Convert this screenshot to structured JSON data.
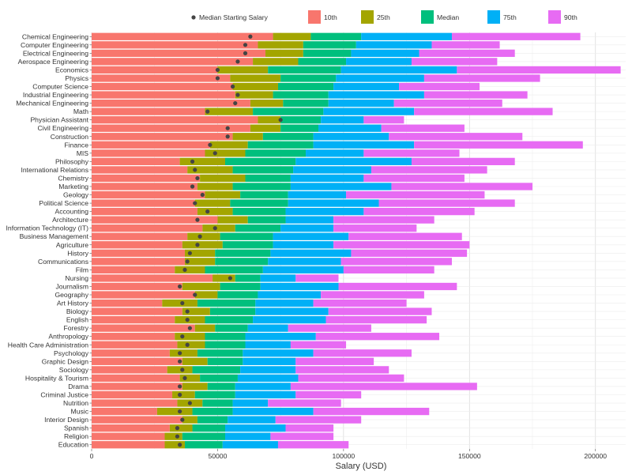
{
  "chart_data": {
    "type": "bar",
    "orientation": "horizontal",
    "stacked": true,
    "xlabel": "Salary (USD)",
    "ylabel": "",
    "xlim": [
      0,
      212000
    ],
    "xticks": [
      0,
      50000,
      100000,
      150000,
      200000
    ],
    "grid": true,
    "legend_position": "top",
    "colors": {
      "10th": "#F8766D",
      "25th": "#A3A500",
      "Median": "#00BF7D",
      "75th": "#00B0F6",
      "90th": "#E76BF3",
      "median_starting": "#444444"
    },
    "legend": {
      "marker_label": "Median Starting Salary",
      "series_labels": [
        "10th",
        "25th",
        "Median",
        "75th",
        "90th"
      ]
    },
    "series_keys": [
      "p10",
      "p25",
      "median",
      "p75",
      "p90"
    ],
    "majors": [
      {
        "name": "Chemical Engineering",
        "p10": 72000,
        "p25": 87000,
        "median": 107000,
        "p75": 143000,
        "p90": 194000,
        "start": 63000
      },
      {
        "name": "Computer Engineering",
        "p10": 66000,
        "p25": 84000,
        "median": 105000,
        "p75": 135000,
        "p90": 162000,
        "start": 61000
      },
      {
        "name": "Electrical Engineering",
        "p10": 69000,
        "p25": 84000,
        "median": 103000,
        "p75": 130000,
        "p90": 168000,
        "start": 61000
      },
      {
        "name": "Aerospace Engineering",
        "p10": 64000,
        "p25": 82000,
        "median": 101000,
        "p75": 127000,
        "p90": 161000,
        "start": 58000
      },
      {
        "name": "Economics",
        "p10": 50000,
        "p25": 70000,
        "median": 99000,
        "p75": 145000,
        "p90": 210000,
        "start": 50000
      },
      {
        "name": "Physics",
        "p10": 55000,
        "p25": 75000,
        "median": 97000,
        "p75": 132000,
        "p90": 178000,
        "start": 50000
      },
      {
        "name": "Computer Science",
        "p10": 56000,
        "p25": 74000,
        "median": 96000,
        "p75": 122000,
        "p90": 154000,
        "start": 56000
      },
      {
        "name": "Industrial Engineering",
        "p10": 57000,
        "p25": 72000,
        "median": 94000,
        "p75": 132000,
        "p90": 173000,
        "start": 58000
      },
      {
        "name": "Mechanical Engineering",
        "p10": 63000,
        "p25": 76000,
        "median": 94000,
        "p75": 120000,
        "p90": 163000,
        "start": 57000
      },
      {
        "name": "Math",
        "p10": 45000,
        "p25": 64000,
        "median": 92000,
        "p75": 128000,
        "p90": 183000,
        "start": 46000
      },
      {
        "name": "Physician Assistant",
        "p10": 66000,
        "p25": 75000,
        "median": 91000,
        "p75": 108000,
        "p90": 124000,
        "start": 75000
      },
      {
        "name": "Civil Engineering",
        "p10": 63000,
        "p25": 75000,
        "median": 90000,
        "p75": 115000,
        "p90": 148000,
        "start": 54000
      },
      {
        "name": "Construction",
        "p10": 56000,
        "p25": 68000,
        "median": 88000,
        "p75": 118000,
        "p90": 171000,
        "start": 54000
      },
      {
        "name": "Finance",
        "p10": 47000,
        "p25": 62000,
        "median": 88000,
        "p75": 128000,
        "p90": 195000,
        "start": 47000
      },
      {
        "name": "MIS",
        "p10": 45000,
        "p25": 61000,
        "median": 85000,
        "p75": 108000,
        "p90": 146000,
        "start": 49000
      },
      {
        "name": "Philosophy",
        "p10": 35000,
        "p25": 53000,
        "median": 81000,
        "p75": 127000,
        "p90": 168000,
        "start": 40000
      },
      {
        "name": "International Relations",
        "p10": 38000,
        "p25": 56000,
        "median": 80000,
        "p75": 111000,
        "p90": 157000,
        "start": 41000
      },
      {
        "name": "Chemistry",
        "p10": 43000,
        "p25": 61000,
        "median": 79000,
        "p75": 108000,
        "p90": 148000,
        "start": 42000
      },
      {
        "name": "Marketing",
        "p10": 42000,
        "p25": 56000,
        "median": 79000,
        "p75": 119000,
        "p90": 175000,
        "start": 40000
      },
      {
        "name": "Geology",
        "p10": 45000,
        "p25": 59000,
        "median": 78000,
        "p75": 101000,
        "p90": 156000,
        "start": 44000
      },
      {
        "name": "Political Science",
        "p10": 41000,
        "p25": 55000,
        "median": 78000,
        "p75": 114000,
        "p90": 168000,
        "start": 41000
      },
      {
        "name": "Accounting",
        "p10": 42000,
        "p25": 56000,
        "median": 77000,
        "p75": 108000,
        "p90": 152000,
        "start": 46000
      },
      {
        "name": "Architecture",
        "p10": 50000,
        "p25": 62000,
        "median": 77000,
        "p75": 96000,
        "p90": 136000,
        "start": 42000
      },
      {
        "name": "Information Technology (IT)",
        "p10": 44000,
        "p25": 57000,
        "median": 75000,
        "p75": 96000,
        "p90": 129000,
        "start": 49000
      },
      {
        "name": "Business Management",
        "p10": 38000,
        "p25": 51000,
        "median": 72000,
        "p75": 102000,
        "p90": 147000,
        "start": 43000
      },
      {
        "name": "Agriculture",
        "p10": 36000,
        "p25": 52000,
        "median": 72000,
        "p75": 96000,
        "p90": 150000,
        "start": 42000
      },
      {
        "name": "History",
        "p10": 37000,
        "p25": 49000,
        "median": 71000,
        "p75": 103000,
        "p90": 149000,
        "start": 39000
      },
      {
        "name": "Communications",
        "p10": 37000,
        "p25": 49000,
        "median": 70000,
        "p75": 99000,
        "p90": 143000,
        "start": 38000
      },
      {
        "name": "Film",
        "p10": 33000,
        "p25": 45000,
        "median": 68000,
        "p75": 100000,
        "p90": 136000,
        "start": 37000
      },
      {
        "name": "Nursing",
        "p10": 48000,
        "p25": 57000,
        "median": 67000,
        "p75": 81000,
        "p90": 98000,
        "start": 55000
      },
      {
        "name": "Journalism",
        "p10": 36000,
        "p25": 51000,
        "median": 67000,
        "p75": 98000,
        "p90": 145000,
        "start": 35000
      },
      {
        "name": "Geography",
        "p10": 41000,
        "p25": 50000,
        "median": 66000,
        "p75": 91000,
        "p90": 132000,
        "start": 41000
      },
      {
        "name": "Art History",
        "p10": 28000,
        "p25": 42000,
        "median": 65000,
        "p75": 88000,
        "p90": 125000,
        "start": 36000
      },
      {
        "name": "Biology",
        "p10": 36000,
        "p25": 47000,
        "median": 65000,
        "p75": 94000,
        "p90": 135000,
        "start": 38000
      },
      {
        "name": "English",
        "p10": 33000,
        "p25": 45000,
        "median": 64000,
        "p75": 93000,
        "p90": 133000,
        "start": 38000
      },
      {
        "name": "Forestry",
        "p10": 41000,
        "p25": 49000,
        "median": 62000,
        "p75": 78000,
        "p90": 111000,
        "start": 39000
      },
      {
        "name": "Anthropology",
        "p10": 33000,
        "p25": 45000,
        "median": 61000,
        "p75": 89000,
        "p90": 138000,
        "start": 36000
      },
      {
        "name": "Health Care Administration",
        "p10": 34000,
        "p25": 45000,
        "median": 61000,
        "p75": 79000,
        "p90": 101000,
        "start": 38000
      },
      {
        "name": "Psychology",
        "p10": 31000,
        "p25": 42000,
        "median": 60000,
        "p75": 88000,
        "p90": 127000,
        "start": 35000
      },
      {
        "name": "Graphic Design",
        "p10": 36000,
        "p25": 46000,
        "median": 60000,
        "p75": 81000,
        "p90": 112000,
        "start": 35000
      },
      {
        "name": "Sociology",
        "p10": 30000,
        "p25": 40000,
        "median": 59000,
        "p75": 81000,
        "p90": 118000,
        "start": 36000
      },
      {
        "name": "Hospitality & Tourism",
        "p10": 35000,
        "p25": 43000,
        "median": 58000,
        "p75": 82000,
        "p90": 124000,
        "start": 37000
      },
      {
        "name": "Drama",
        "p10": 36000,
        "p25": 46000,
        "median": 57000,
        "p75": 79000,
        "p90": 153000,
        "start": 35000
      },
      {
        "name": "Criminal Justice",
        "p10": 32000,
        "p25": 41000,
        "median": 57000,
        "p75": 81000,
        "p90": 107000,
        "start": 35000
      },
      {
        "name": "Nutrition",
        "p10": 34000,
        "p25": 44000,
        "median": 56000,
        "p75": 70000,
        "p90": 99000,
        "start": 39000
      },
      {
        "name": "Music",
        "p10": 26000,
        "p25": 40000,
        "median": 56000,
        "p75": 88000,
        "p90": 134000,
        "start": 35000
      },
      {
        "name": "Interior Design",
        "p10": 36000,
        "p25": 42000,
        "median": 54000,
        "p75": 73000,
        "p90": 107000,
        "start": 36000
      },
      {
        "name": "Spanish",
        "p10": 31000,
        "p25": 40000,
        "median": 53000,
        "p75": 77000,
        "p90": 96000,
        "start": 34000
      },
      {
        "name": "Religion",
        "p10": 29000,
        "p25": 36000,
        "median": 53000,
        "p75": 71000,
        "p90": 96000,
        "start": 34000
      },
      {
        "name": "Education",
        "p10": 29000,
        "p25": 37000,
        "median": 52000,
        "p75": 74000,
        "p90": 102000,
        "start": 35000
      }
    ]
  }
}
